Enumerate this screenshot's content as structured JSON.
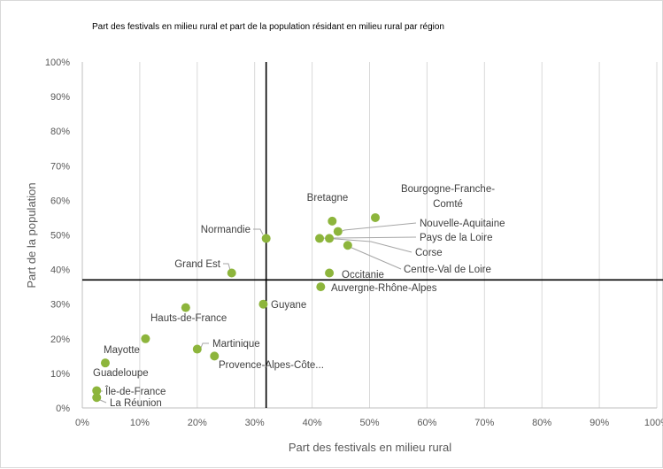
{
  "chart_data": {
    "type": "scatter",
    "title": "Part des festivals en milieu rural et part de la population  résidant en milieu rural par région",
    "xlabel": "Part des festivals en milieu rural",
    "ylabel": "Part de la population",
    "xlim": [
      0,
      1
    ],
    "ylim": [
      0,
      1
    ],
    "x_ticks": [
      "0%",
      "10%",
      "20%",
      "30%",
      "40%",
      "50%",
      "60%",
      "70%",
      "80%",
      "90%",
      "100%"
    ],
    "y_ticks": [
      "0%",
      "10%",
      "20%",
      "30%",
      "40%",
      "50%",
      "60%",
      "70%",
      "80%",
      "90%",
      "100%"
    ],
    "grid": "vertical",
    "reference_lines": {
      "x": 0.32,
      "y": 0.37
    },
    "marker_color": "#8db53c",
    "points": [
      {
        "name": "Bourgogne-Franche-Comté",
        "label_lines": [
          "Bourgogne-Franche-",
          "Comté"
        ],
        "x": 0.51,
        "y": 0.55
      },
      {
        "name": "Bretagne",
        "x": 0.435,
        "y": 0.54
      },
      {
        "name": "Nouvelle-Aquitaine",
        "x": 0.445,
        "y": 0.51
      },
      {
        "name": "Pays de la Loire",
        "x": 0.43,
        "y": 0.49
      },
      {
        "name": "Corse",
        "x": 0.413,
        "y": 0.49
      },
      {
        "name": "Centre-Val de Loire",
        "x": 0.462,
        "y": 0.47
      },
      {
        "name": "Normandie",
        "x": 0.32,
        "y": 0.49
      },
      {
        "name": "Grand Est",
        "x": 0.26,
        "y": 0.39
      },
      {
        "name": "Occitanie",
        "x": 0.43,
        "y": 0.39
      },
      {
        "name": "Auvergne-Rhône-Alpes",
        "x": 0.415,
        "y": 0.35
      },
      {
        "name": "Guyane",
        "x": 0.315,
        "y": 0.3
      },
      {
        "name": "Hauts-de-France",
        "x": 0.18,
        "y": 0.29
      },
      {
        "name": "Mayotte",
        "x": 0.11,
        "y": 0.2
      },
      {
        "name": "Martinique",
        "x": 0.2,
        "y": 0.17
      },
      {
        "name": "Provence-Alpes-Côte...",
        "x": 0.23,
        "y": 0.15
      },
      {
        "name": "Guadeloupe",
        "x": 0.04,
        "y": 0.13
      },
      {
        "name": "Île-de-France",
        "x": 0.025,
        "y": 0.05
      },
      {
        "name": "La Réunion",
        "x": 0.025,
        "y": 0.03
      }
    ]
  }
}
